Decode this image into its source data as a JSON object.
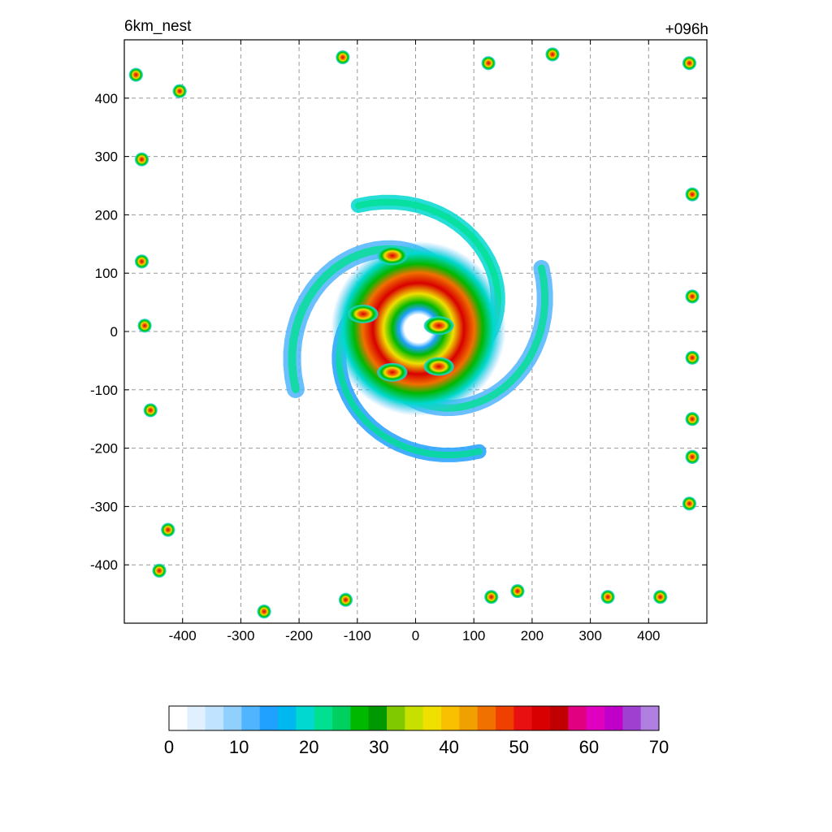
{
  "chart_data": {
    "type": "heatmap",
    "title_left": "6km_nest",
    "title_right": "+096h",
    "xlabel": "",
    "ylabel": "",
    "xlim": [
      -500,
      500
    ],
    "ylim": [
      -500,
      500
    ],
    "x_ticks": [
      -400,
      -300,
      -200,
      -100,
      0,
      100,
      200,
      300,
      400
    ],
    "y_ticks": [
      400,
      300,
      200,
      100,
      0,
      -100,
      -200,
      -300,
      -400
    ],
    "grid": true,
    "grid_style": "dashed",
    "colorbar": {
      "orientation": "horizontal",
      "range": [
        0,
        70
      ],
      "ticks": [
        0,
        10,
        20,
        30,
        40,
        50,
        60,
        70
      ],
      "colors": [
        "#ffffff",
        "#e0f0ff",
        "#c0e4ff",
        "#90d0ff",
        "#50b4ff",
        "#20a0ff",
        "#00b8f0",
        "#00d8d0",
        "#00e090",
        "#00d060",
        "#00b800",
        "#009800",
        "#80c800",
        "#c8e000",
        "#f0e000",
        "#f8c000",
        "#f0a000",
        "#f07000",
        "#f04000",
        "#e81010",
        "#d80000",
        "#c00000",
        "#e00080",
        "#e000c0",
        "#c000c8",
        "#a040d0",
        "#b080e0"
      ]
    },
    "features": [
      {
        "name": "eye",
        "x": 5,
        "y": 5,
        "value": 0
      },
      {
        "name": "eyewall",
        "x": 40,
        "y": 10,
        "value": 55
      },
      {
        "name": "rainband-north",
        "x": -40,
        "y": 130,
        "value": 50
      },
      {
        "name": "rainband-west",
        "x": -90,
        "y": 30,
        "value": 50
      },
      {
        "name": "rainband-south",
        "x": -40,
        "y": -70,
        "value": 50
      },
      {
        "name": "rainband-southeast",
        "x": 40,
        "y": -60,
        "value": 50
      }
    ],
    "scattered_cells": [
      {
        "x": -480,
        "y": 440
      },
      {
        "x": -405,
        "y": 412
      },
      {
        "x": -470,
        "y": 295
      },
      {
        "x": -470,
        "y": 120
      },
      {
        "x": -465,
        "y": 10
      },
      {
        "x": -455,
        "y": -135
      },
      {
        "x": -425,
        "y": -340
      },
      {
        "x": -440,
        "y": -410
      },
      {
        "x": -260,
        "y": -480
      },
      {
        "x": -120,
        "y": -460
      },
      {
        "x": 130,
        "y": -455
      },
      {
        "x": 175,
        "y": -445
      },
      {
        "x": 330,
        "y": -455
      },
      {
        "x": 420,
        "y": -455
      },
      {
        "x": 470,
        "y": -295
      },
      {
        "x": 475,
        "y": -215
      },
      {
        "x": 475,
        "y": -150
      },
      {
        "x": 475,
        "y": -45
      },
      {
        "x": 475,
        "y": 60
      },
      {
        "x": 475,
        "y": 235
      },
      {
        "x": 470,
        "y": 460
      },
      {
        "x": 235,
        "y": 475
      },
      {
        "x": 125,
        "y": 460
      },
      {
        "x": -125,
        "y": 470
      }
    ]
  }
}
